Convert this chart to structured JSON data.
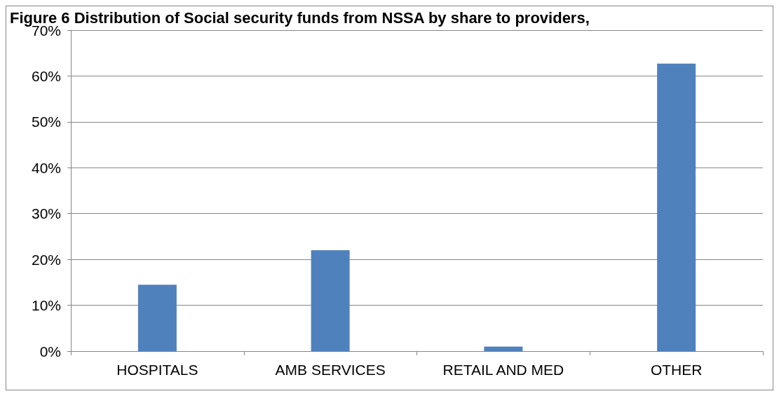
{
  "chart_data": {
    "type": "bar",
    "title": "Figure 6 Distribution of Social security funds from NSSA by share to providers,",
    "categories": [
      "HOSPITALS",
      "AMB SERVICES",
      "RETAIL AND MED",
      "OTHER"
    ],
    "values": [
      14.5,
      22,
      1,
      62.7
    ],
    "color": "#4f81bd",
    "ylim": [
      0,
      70
    ],
    "yticks": [
      {
        "value": 0,
        "label": "0%"
      },
      {
        "value": 10,
        "label": "10%"
      },
      {
        "value": 20,
        "label": "20%"
      },
      {
        "value": 30,
        "label": "30%"
      },
      {
        "value": 40,
        "label": "40%"
      },
      {
        "value": 50,
        "label": "50%"
      },
      {
        "value": 60,
        "label": "60%"
      },
      {
        "value": 70,
        "label": "70%"
      }
    ],
    "grid": "y"
  }
}
